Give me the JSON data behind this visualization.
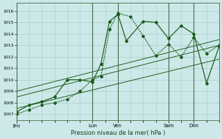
{
  "bg_color": "#cce8e8",
  "grid_color": "#aacccc",
  "line_color": "#1a5c1a",
  "xlabel": "Pression niveau de la mer( hPa )",
  "ylim": [
    1006.5,
    1016.7
  ],
  "xlim": [
    0,
    96
  ],
  "yticks": [
    1007,
    1008,
    1009,
    1010,
    1011,
    1012,
    1013,
    1014,
    1015,
    1016
  ],
  "day_x": [
    0,
    36,
    48,
    72,
    84
  ],
  "day_labels": [
    "Jeu",
    "Lun",
    "Ven",
    "Sam",
    "Dim"
  ],
  "series_dotted_x": [
    0,
    6,
    12,
    18,
    24,
    30,
    36,
    40,
    44,
    48,
    54,
    60,
    66,
    72,
    78,
    84,
    90,
    96
  ],
  "series_dotted_y": [
    1007.0,
    1007.4,
    1007.8,
    1008.0,
    1008.3,
    1009.0,
    1010.0,
    1010.3,
    1014.4,
    1015.8,
    1015.5,
    1013.8,
    1012.1,
    1013.1,
    1012.0,
    1013.7,
    1012.3,
    1013.0
  ],
  "series_solid_x": [
    0,
    6,
    12,
    18,
    24,
    30,
    36,
    40,
    44,
    48,
    52,
    60,
    66,
    72,
    78,
    84,
    90,
    96
  ],
  "series_solid_y": [
    1007.2,
    1007.8,
    1008.1,
    1008.5,
    1010.0,
    1010.0,
    1009.8,
    1011.4,
    1015.1,
    1015.7,
    1013.4,
    1015.1,
    1015.0,
    1013.6,
    1014.7,
    1014.0,
    1009.7,
    1012.9
  ],
  "trend1_x": [
    0,
    96
  ],
  "trend1_y": [
    1007.5,
    1011.8
  ],
  "trend2_x": [
    0,
    96
  ],
  "trend2_y": [
    1008.5,
    1013.0
  ],
  "trend3_x": [
    0,
    96
  ],
  "trend3_y": [
    1009.0,
    1013.5
  ]
}
